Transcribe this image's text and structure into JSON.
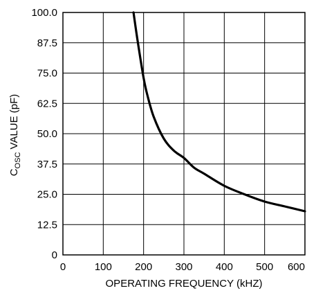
{
  "chart_data": {
    "type": "line",
    "title": "",
    "xlabel": "OPERATING FREQUENCY (kHZ)",
    "ylabel_main": "C",
    "ylabel_sub": "OSC",
    "ylabel_rest": " VALUE (pF)",
    "xlim": [
      0,
      600
    ],
    "ylim": [
      0,
      100
    ],
    "x_ticks": [
      "0",
      "100",
      "200",
      "300",
      "400",
      "500",
      "600"
    ],
    "y_ticks": [
      "0",
      "12.5",
      "25.0",
      "37.5",
      "50.0",
      "62.5",
      "75.0",
      "87.5",
      "100.0"
    ],
    "grid": true,
    "series": [
      {
        "x": [
          175,
          185,
          200,
          210,
          225,
          250,
          275,
          300,
          325,
          350,
          400,
          450,
          500,
          550,
          600
        ],
        "y": [
          100,
          88.5,
          73,
          65.5,
          57,
          48,
          43,
          40,
          36,
          33.5,
          28.5,
          25,
          22,
          20,
          18
        ]
      }
    ],
    "colors": {
      "curve": "#000000",
      "grid": "#000000"
    }
  }
}
